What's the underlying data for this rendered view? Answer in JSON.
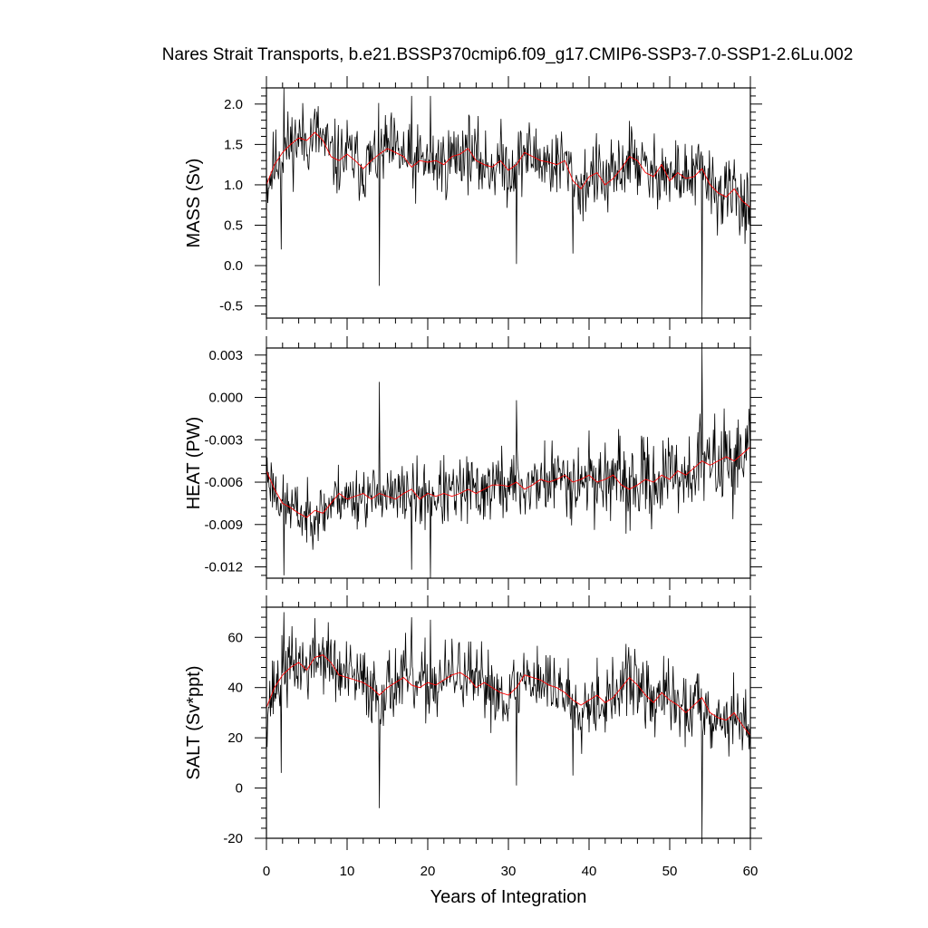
{
  "chart_data": {
    "type": "line",
    "title": "Nares Strait Transports, b.e21.BSSP370cmip6.f09_g17.CMIP6-SSP3-7.0-SSP1-2.6Lu.002",
    "xlabel": "Years of Integration",
    "xlim": [
      0,
      60
    ],
    "x_ticks": [
      "0",
      "10",
      "20",
      "30",
      "40",
      "50",
      "60"
    ],
    "line_colors": {
      "monthly": "#000000",
      "annual_mean": "#ff0000"
    },
    "panels": [
      {
        "ylabel": "MASS (Sv)",
        "ylim": [
          -0.65,
          2.2
        ],
        "y_ticks": [
          "2.0",
          "1.5",
          "1.0",
          "0.5",
          "0.0",
          "-0.5"
        ],
        "y_tick_values": [
          2.0,
          1.5,
          1.0,
          0.5,
          0.0,
          -0.5
        ],
        "annual_mean": [
          1.0,
          1.25,
          1.4,
          1.5,
          1.58,
          1.55,
          1.65,
          1.55,
          1.35,
          1.3,
          1.38,
          1.3,
          1.2,
          1.3,
          1.38,
          1.45,
          1.4,
          1.35,
          1.22,
          1.3,
          1.28,
          1.3,
          1.25,
          1.35,
          1.38,
          1.45,
          1.3,
          1.25,
          1.22,
          1.3,
          1.18,
          1.25,
          1.4,
          1.35,
          1.3,
          1.28,
          1.25,
          1.3,
          1.05,
          0.95,
          1.1,
          1.15,
          1.0,
          1.08,
          1.2,
          1.35,
          1.3,
          1.15,
          1.1,
          1.25,
          1.05,
          1.15,
          1.08,
          1.1,
          1.2,
          1.0,
          0.9,
          0.85,
          0.95,
          0.8,
          0.72
        ],
        "spikes": [
          {
            "x": 1.8,
            "v": 0.2
          },
          {
            "x": 2.2,
            "v": 2.2
          },
          {
            "x": 14,
            "v": -0.25
          },
          {
            "x": 18,
            "v": 2.1
          },
          {
            "x": 20.3,
            "v": 2.1
          },
          {
            "x": 31,
            "v": 0.02
          },
          {
            "x": 38,
            "v": 0.15
          },
          {
            "x": 54,
            "v": -0.65
          }
        ],
        "noise": 0.28,
        "noise_trend": 0.0,
        "seed": 11
      },
      {
        "ylabel": "HEAT (PW)",
        "ylim": [
          -0.0128,
          0.0035
        ],
        "y_ticks": [
          "0.003",
          "0.000",
          "-0.003",
          "-0.006",
          "-0.009",
          "-0.012"
        ],
        "y_tick_values": [
          0.003,
          0.0,
          -0.003,
          -0.006,
          -0.009,
          -0.012
        ],
        "annual_mean": [
          -0.0052,
          -0.0065,
          -0.0075,
          -0.0078,
          -0.0082,
          -0.0085,
          -0.008,
          -0.0082,
          -0.0075,
          -0.0068,
          -0.0072,
          -0.007,
          -0.0068,
          -0.0072,
          -0.0068,
          -0.007,
          -0.0072,
          -0.0068,
          -0.0065,
          -0.0072,
          -0.0068,
          -0.007,
          -0.0068,
          -0.007,
          -0.0068,
          -0.0065,
          -0.0068,
          -0.0065,
          -0.0062,
          -0.0062,
          -0.0063,
          -0.006,
          -0.0065,
          -0.0062,
          -0.0058,
          -0.006,
          -0.0058,
          -0.0055,
          -0.006,
          -0.0058,
          -0.0055,
          -0.006,
          -0.0058,
          -0.0055,
          -0.0062,
          -0.0065,
          -0.0062,
          -0.0058,
          -0.006,
          -0.0055,
          -0.0058,
          -0.0052,
          -0.0055,
          -0.005,
          -0.0045,
          -0.0048,
          -0.0045,
          -0.0042,
          -0.0045,
          -0.004,
          -0.0035
        ],
        "spikes": [
          {
            "x": 2.2,
            "v": -0.0126
          },
          {
            "x": 14,
            "v": 0.0011
          },
          {
            "x": 18,
            "v": -0.0122
          },
          {
            "x": 20.3,
            "v": -0.0128
          },
          {
            "x": 31,
            "v": -0.0002
          },
          {
            "x": 54,
            "v": 0.0035
          }
        ],
        "noise": 0.0012,
        "noise_trend": 0.0008,
        "seed": 23
      },
      {
        "ylabel": "SALT (Sv*ppt)",
        "ylim": [
          -20,
          72
        ],
        "y_ticks": [
          "60",
          "40",
          "20",
          "0",
          "-20"
        ],
        "y_tick_values": [
          60,
          40,
          20,
          0,
          -20
        ],
        "annual_mean": [
          32,
          40,
          45,
          48,
          50,
          47,
          52,
          53,
          50,
          45,
          44,
          43,
          42,
          40,
          37,
          40,
          42,
          44,
          41,
          40,
          42,
          41,
          43,
          45,
          46,
          44,
          40,
          42,
          40,
          38,
          37,
          40,
          45,
          44,
          43,
          41,
          40,
          38,
          35,
          33,
          35,
          37,
          34,
          36,
          40,
          44,
          41,
          37,
          34,
          38,
          35,
          33,
          30,
          33,
          36,
          30,
          28,
          27,
          30,
          25,
          21
        ],
        "spikes": [
          {
            "x": 1.8,
            "v": 6
          },
          {
            "x": 2.2,
            "v": 70
          },
          {
            "x": 14,
            "v": -8
          },
          {
            "x": 18,
            "v": 68
          },
          {
            "x": 20.3,
            "v": 67
          },
          {
            "x": 31,
            "v": 1
          },
          {
            "x": 38,
            "v": 5
          },
          {
            "x": 54,
            "v": -20
          }
        ],
        "noise": 9,
        "noise_trend": 0.0,
        "seed": 37
      }
    ]
  }
}
